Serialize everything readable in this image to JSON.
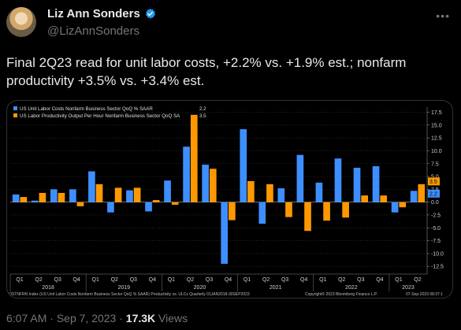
{
  "author": {
    "name": "Liz Ann Sonders",
    "handle": "@LizAnnSonders",
    "avatar_icon": "avatar-photo",
    "verified_icon": "verified-badge-icon",
    "verified_color": "#1d9bf0"
  },
  "more_icon": "more-dots-icon",
  "tweet": {
    "text": "Final 2Q23 read for unit labor costs, +2.2% vs. +1.9% est.; nonfarm productivity +3.5% vs. +3.4% est."
  },
  "chart_data": {
    "type": "bar",
    "categories": [
      "Q1 2018",
      "Q2 2018",
      "Q3 2018",
      "Q4 2018",
      "Q1 2019",
      "Q2 2019",
      "Q3 2019",
      "Q4 2019",
      "Q1 2020",
      "Q2 2020",
      "Q3 2020",
      "Q4 2020",
      "Q1 2021",
      "Q2 2021",
      "Q3 2021",
      "Q4 2021",
      "Q1 2022",
      "Q2 2022",
      "Q3 2022",
      "Q4 2022",
      "Q1 2023",
      "Q2 2023"
    ],
    "series": [
      {
        "name": "US Unit Labor Costs Nonfarm Business Sector QoQ % SAAR",
        "color": "#3d8fff",
        "last_label": "2.2",
        "values": [
          1.5,
          0.3,
          2.5,
          2.5,
          6.0,
          -2.0,
          2.3,
          -1.8,
          4.2,
          10.8,
          7.3,
          -12.0,
          14.2,
          -4.2,
          2.7,
          9.2,
          3.8,
          8.5,
          6.7,
          7.0,
          -2.0,
          2.2
        ]
      },
      {
        "name": "US Labor Productivity Output Per Hour Nonfarm Business Sector QoQ SA",
        "color": "#ff9800",
        "last_label": "3.5",
        "values": [
          1.0,
          1.8,
          1.8,
          -0.8,
          3.5,
          2.8,
          2.8,
          0.4,
          -0.5,
          17.0,
          6.5,
          -3.5,
          4.1,
          3.5,
          -2.9,
          -5.6,
          -3.6,
          -3.0,
          1.3,
          1.3,
          -1.0,
          3.5
        ]
      }
    ],
    "years": [
      "2018",
      "2019",
      "2020",
      "2021",
      "2022",
      "2023"
    ],
    "ytick_labels": [
      "17.5",
      "15.0",
      "12.5",
      "10.0",
      "7.5",
      "5.0",
      "2.5",
      "0.0",
      "-2.5",
      "-5.0",
      "-7.5",
      "-10.0",
      "-12.5"
    ],
    "ylim": [
      -14.0,
      18.5
    ],
    "footer_left": "OSTNFRN Index (US Unit Labor Costs Nonfarm Business Sector QoQ % SAAR) Productivity vs. ULCs  Quarterly 01JAN2018-30SEP2023",
    "footer_mid": "Copyright© 2023 Bloomberg Finance L.P.",
    "footer_right": "07-Sep-2023 08:37:1"
  },
  "meta": {
    "time": "6:07 AM",
    "separator": "·",
    "date": "Sep 7, 2023",
    "views_count": "17.3K",
    "views_label": "Views"
  }
}
